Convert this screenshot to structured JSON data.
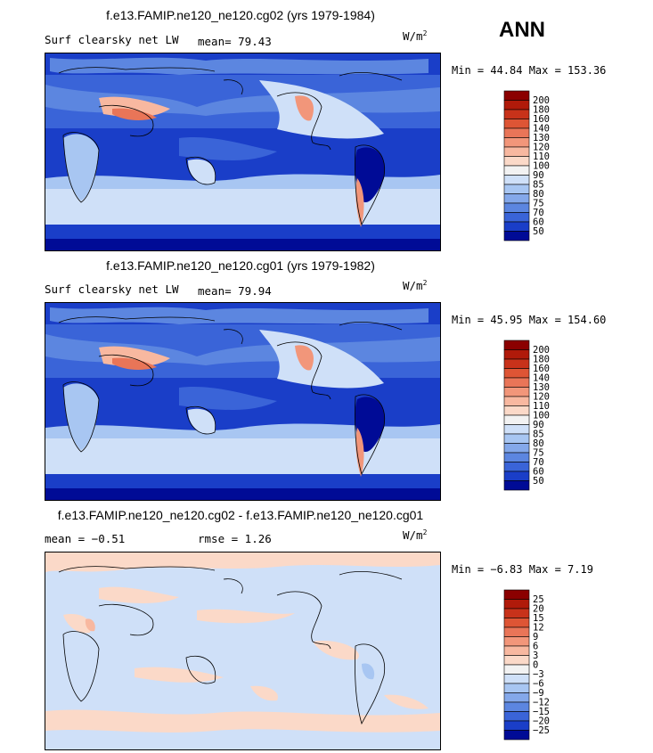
{
  "season": "ANN",
  "chart_data": [
    {
      "type": "heatmap",
      "title": "f.e13.FAMIP.ne120_ne120.cg02 (yrs 1979-1984)",
      "variable": "Surf clearsky net LW",
      "mean_text": "mean=  79.43",
      "units": "W/m",
      "units_exp": "2",
      "min_max_text": "Min =  44.84 Max = 153.36",
      "levels": [
        "200",
        "180",
        "160",
        "140",
        "130",
        "120",
        "110",
        "100",
        "90",
        "85",
        "80",
        "75",
        "70",
        "60",
        "50"
      ],
      "colors": [
        "#8b0000",
        "#b01a0a",
        "#c8321a",
        "#de5535",
        "#e97558",
        "#f2967a",
        "#f8b8a0",
        "#fbd9c8",
        "#f2f2f2",
        "#cfe0f8",
        "#a8c6f2",
        "#84a8ea",
        "#5c86e0",
        "#3a64d8",
        "#1a3ec8",
        "#000b96"
      ]
    },
    {
      "type": "heatmap",
      "title": "f.e13.FAMIP.ne120_ne120.cg01 (yrs 1979-1982)",
      "variable": "Surf clearsky net LW",
      "mean_text": "mean=  79.94",
      "units": "W/m",
      "units_exp": "2",
      "min_max_text": "Min =  45.95 Max = 154.60",
      "levels": [
        "200",
        "180",
        "160",
        "140",
        "130",
        "120",
        "110",
        "100",
        "90",
        "85",
        "80",
        "75",
        "70",
        "60",
        "50"
      ],
      "colors": [
        "#8b0000",
        "#b01a0a",
        "#c8321a",
        "#de5535",
        "#e97558",
        "#f2967a",
        "#f8b8a0",
        "#fbd9c8",
        "#f2f2f2",
        "#cfe0f8",
        "#a8c6f2",
        "#84a8ea",
        "#5c86e0",
        "#3a64d8",
        "#1a3ec8",
        "#000b96"
      ]
    },
    {
      "type": "heatmap",
      "title": "f.e13.FAMIP.ne120_ne120.cg02 - f.e13.FAMIP.ne120_ne120.cg01",
      "mean_text": "mean =  −0.51",
      "rmse_text": "rmse =   1.26",
      "units": "W/m",
      "units_exp": "2",
      "min_max_text": "Min =  −6.83 Max =   7.19",
      "levels": [
        "25",
        "20",
        "15",
        "12",
        "9",
        "6",
        "3",
        "0",
        "−3",
        "−6",
        "−9",
        "−12",
        "−15",
        "−20",
        "−25"
      ],
      "colors": [
        "#8b0000",
        "#b01a0a",
        "#c8321a",
        "#de5535",
        "#e97558",
        "#f2967a",
        "#f8b8a0",
        "#fbd9c8",
        "#f2f2f2",
        "#cfe0f8",
        "#a8c6f2",
        "#84a8ea",
        "#5c86e0",
        "#3a64d8",
        "#1a3ec8",
        "#000b96"
      ]
    }
  ]
}
